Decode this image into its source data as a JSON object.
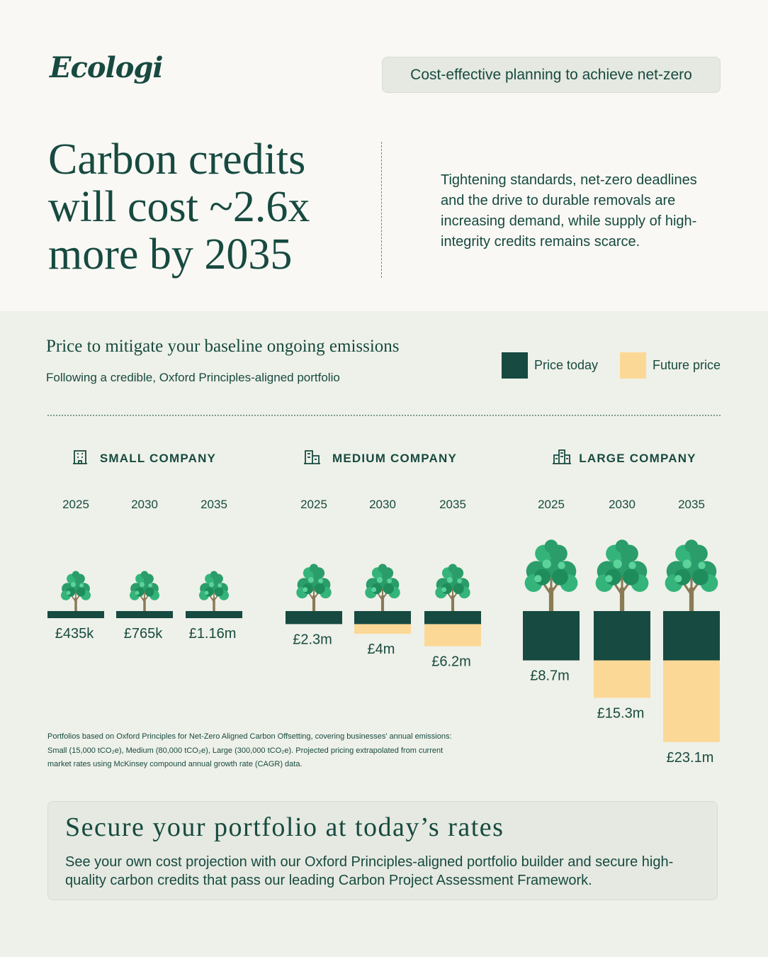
{
  "brand": {
    "logo": "Ecologi",
    "tagline": "Cost-effective planning to achieve net-zero"
  },
  "hero": {
    "headline": "Carbon credits will cost ~2.6x more by 2035",
    "intro": "Tightening standards, net-zero deadlines and the drive to durable removals are increasing demand, while supply of high-integrity credits remains scarce."
  },
  "section": {
    "title": "Price to mitigate your baseline ongoing emissions",
    "subtitle": "Following a credible, Oxford Principles-aligned portfolio"
  },
  "colors": {
    "price_today": "#174a40",
    "future_price": "#fcd897",
    "tree_leaf": "#2a9d6a",
    "tree_trunk": "#8a7a55"
  },
  "chart_data": {
    "type": "bar",
    "title": "Price to mitigate your baseline ongoing emissions",
    "legend": [
      {
        "name": "Price today",
        "color": "#174a40"
      },
      {
        "name": "Future price",
        "color": "#fcd897"
      }
    ],
    "legend_position": "top-right",
    "groups": [
      {
        "name": "SMALL COMPANY",
        "icon": "small-building-icon",
        "points": [
          {
            "year": "2025",
            "today": 0.435,
            "future": 0.435,
            "label": "£435k"
          },
          {
            "year": "2030",
            "today": 0.435,
            "future": 0.765,
            "label": "£765k"
          },
          {
            "year": "2035",
            "today": 0.435,
            "future": 1.16,
            "label": "£1.16m"
          }
        ]
      },
      {
        "name": "MEDIUM COMPANY",
        "icon": "medium-building-icon",
        "points": [
          {
            "year": "2025",
            "today": 2.3,
            "future": 2.3,
            "label": "£2.3m"
          },
          {
            "year": "2030",
            "today": 2.3,
            "future": 4.0,
            "label": "£4m"
          },
          {
            "year": "2035",
            "today": 2.3,
            "future": 6.2,
            "label": "£6.2m"
          }
        ]
      },
      {
        "name": "LARGE COMPANY",
        "icon": "large-building-icon",
        "points": [
          {
            "year": "2025",
            "today": 8.7,
            "future": 8.7,
            "label": "£8.7m"
          },
          {
            "year": "2030",
            "today": 8.7,
            "future": 15.3,
            "label": "£15.3m"
          },
          {
            "year": "2035",
            "today": 8.7,
            "future": 23.1,
            "label": "£23.1m"
          }
        ]
      }
    ],
    "unit": "£ millions"
  },
  "footnote": "Portfolios based on Oxford Principles for Net-Zero Aligned Carbon Offsetting, covering businesses' annual emissions: Small (15,000 tCO₂e), Medium (80,000 tCO₂e), Large (300,000 tCO₂e). Projected pricing extrapolated from current market rates using McKinsey compound annual growth rate (CAGR) data.",
  "cta": {
    "title": "Secure your portfolio at today’s rates",
    "text": "See your own cost projection with our Oxford Principles-aligned portfolio builder and secure high-quality carbon credits that pass our leading Carbon Project Assessment Framework."
  }
}
